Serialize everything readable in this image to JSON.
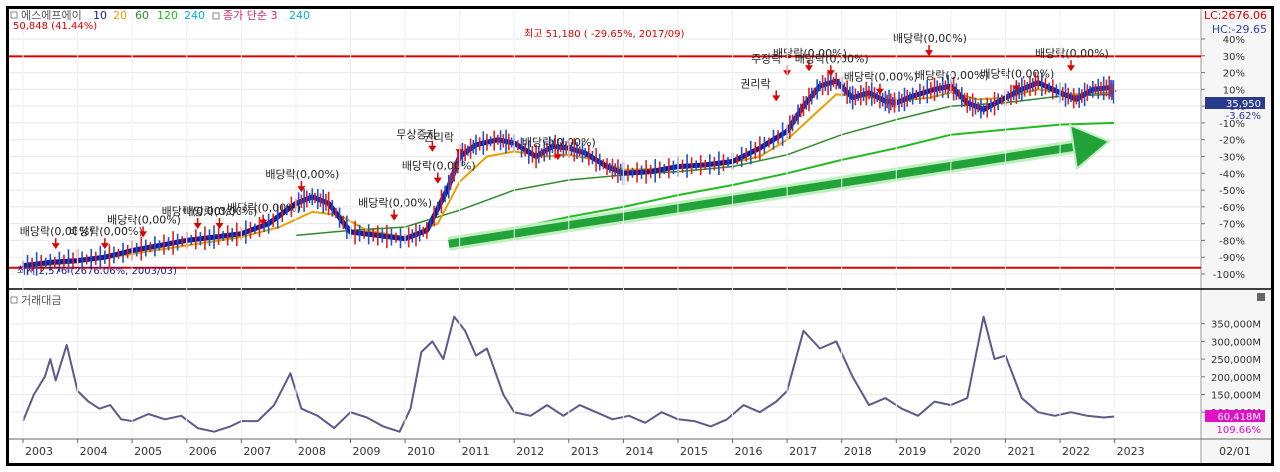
{
  "header": {
    "title": "에스에프에이",
    "ma_periods": [
      "10",
      "20",
      "60",
      "120",
      "240"
    ],
    "ma_colors": [
      "#1a1a8c",
      "#e6a000",
      "#2e8b2e",
      "#22bb22",
      "#00b5d0"
    ],
    "vol_label": "종가 단순 3",
    "vol_period": "240",
    "lc_label": "LC:2676.06",
    "hc_label": "HC:-29.65"
  },
  "annotations": {
    "high_value": "50,848 (41.44%)",
    "peak_label": "최고 51,180 ( -29.65%, 2017/09)",
    "low_label": "최저 2,576 (2676.06%, 2003/03)",
    "price_badge": "35,950",
    "price_pct": "-3.62%",
    "vol_badge": "60,418M",
    "vol_pct": "109.66%",
    "date_corner": "02/01",
    "volume_panel_title": "거래대금"
  },
  "event_labels": [
    "배당락(0,00%)",
    "배당락(0,00%)",
    "배당락(0,00%)",
    "배당락(0,00%)",
    "배당락(0,00%)",
    "배당락(0,00%)",
    "배당락(0,00%)",
    "배당락(0,00%)",
    "배당락(0,00%)",
    "배당락(0,00%)",
    "배당락(0,00%)",
    "배당락(0,00%)",
    "배당락(0,00%)",
    "배당락(0,00%)",
    "배당락(0,00%)",
    "배당락(0,00%)",
    "배당락(0,00%)",
    "권리락",
    "권리락",
    "무상증자",
    "주장락"
  ],
  "trend_arrow": {
    "color": "#22a33a",
    "start_year": 2010.8,
    "start_pct": -82,
    "end_year": 2022.9,
    "end_pct": -21
  },
  "chart_data": [
    {
      "type": "line",
      "x_axis_labels": [
        "2003",
        "2004",
        "2005",
        "2006",
        "2007",
        "2008",
        "2009",
        "2010",
        "2011",
        "2012",
        "2013",
        "2014",
        "2015",
        "2016",
        "2017",
        "2018",
        "2019",
        "2020",
        "2021",
        "2022",
        "2023"
      ],
      "y_axis_labels": [
        "40%",
        "30%",
        "20%",
        "10%",
        "0%",
        "-10%",
        "-20%",
        "-30%",
        "-40%",
        "-50%",
        "-60%",
        "-70%",
        "-80%",
        "-90%",
        "-100%"
      ],
      "ylim": [
        -100,
        40
      ],
      "reference_lines": [
        {
          "pct": 29.65,
          "color": "#dd0000"
        },
        {
          "pct": -96.3,
          "color": "#dd0000"
        }
      ],
      "series": [
        {
          "color": "#1a1a8c",
          "points": [
            [
              2003.0,
              -95
            ],
            [
              2003.5,
              -93
            ],
            [
              2004.0,
              -92
            ],
            [
              2004.5,
              -90
            ],
            [
              2005.0,
              -86
            ],
            [
              2005.5,
              -83
            ],
            [
              2006.0,
              -80
            ],
            [
              2006.5,
              -78
            ],
            [
              2007.0,
              -76
            ],
            [
              2007.5,
              -70
            ],
            [
              2008.0,
              -58
            ],
            [
              2008.3,
              -54
            ],
            [
              2008.6,
              -58
            ],
            [
              2009.0,
              -75
            ],
            [
              2009.5,
              -77
            ],
            [
              2010.0,
              -79
            ],
            [
              2010.4,
              -74
            ],
            [
              2010.8,
              -48
            ],
            [
              2011.0,
              -30
            ],
            [
              2011.3,
              -23
            ],
            [
              2011.7,
              -20
            ],
            [
              2012.0,
              -22
            ],
            [
              2012.4,
              -30
            ],
            [
              2012.7,
              -24
            ],
            [
              2013.0,
              -25
            ],
            [
              2013.3,
              -28
            ],
            [
              2013.7,
              -36
            ],
            [
              2014.0,
              -40
            ],
            [
              2014.5,
              -39
            ],
            [
              2015.0,
              -36
            ],
            [
              2015.5,
              -35
            ],
            [
              2016.0,
              -33
            ],
            [
              2016.5,
              -25
            ],
            [
              2017.0,
              -15
            ],
            [
              2017.3,
              0
            ],
            [
              2017.6,
              12
            ],
            [
              2017.9,
              15
            ],
            [
              2018.2,
              5
            ],
            [
              2018.5,
              8
            ],
            [
              2018.8,
              3
            ],
            [
              2019.0,
              2
            ],
            [
              2019.3,
              6
            ],
            [
              2019.7,
              10
            ],
            [
              2020.0,
              12
            ],
            [
              2020.3,
              2
            ],
            [
              2020.6,
              -2
            ],
            [
              2021.0,
              5
            ],
            [
              2021.3,
              10
            ],
            [
              2021.6,
              14
            ],
            [
              2022.0,
              8
            ],
            [
              2022.3,
              4
            ],
            [
              2022.6,
              10
            ],
            [
              2022.9,
              11
            ],
            [
              2023.0,
              8
            ]
          ]
        },
        {
          "color": "#e6a000",
          "points": [
            [
              2003.0,
              -96
            ],
            [
              2004.0,
              -93
            ],
            [
              2005.0,
              -88
            ],
            [
              2006.0,
              -83
            ],
            [
              2007.0,
              -78
            ],
            [
              2007.7,
              -72
            ],
            [
              2008.3,
              -63
            ],
            [
              2008.8,
              -65
            ],
            [
              2009.3,
              -74
            ],
            [
              2010.0,
              -78
            ],
            [
              2010.6,
              -70
            ],
            [
              2011.0,
              -45
            ],
            [
              2011.5,
              -30
            ],
            [
              2012.0,
              -27
            ],
            [
              2012.6,
              -30
            ],
            [
              2013.0,
              -29
            ],
            [
              2013.5,
              -32
            ],
            [
              2014.0,
              -38
            ],
            [
              2015.0,
              -37
            ],
            [
              2015.8,
              -35
            ],
            [
              2016.5,
              -30
            ],
            [
              2017.0,
              -20
            ],
            [
              2017.5,
              -5
            ],
            [
              2017.9,
              7
            ],
            [
              2018.4,
              6
            ],
            [
              2019.0,
              3
            ],
            [
              2019.6,
              5
            ],
            [
              2020.0,
              8
            ],
            [
              2020.5,
              4
            ],
            [
              2021.0,
              5
            ],
            [
              2021.6,
              10
            ],
            [
              2022.2,
              7
            ],
            [
              2023.0,
              8
            ]
          ]
        },
        {
          "color": "#2e8b2e",
          "points": [
            [
              2008.0,
              -77
            ],
            [
              2009.0,
              -74
            ],
            [
              2010.0,
              -72
            ],
            [
              2011.0,
              -62
            ],
            [
              2012.0,
              -50
            ],
            [
              2013.0,
              -44
            ],
            [
              2014.0,
              -41
            ],
            [
              2015.0,
              -39
            ],
            [
              2016.0,
              -36
            ],
            [
              2017.0,
              -29
            ],
            [
              2018.0,
              -17
            ],
            [
              2019.0,
              -8
            ],
            [
              2020.0,
              0
            ],
            [
              2021.0,
              2
            ],
            [
              2022.0,
              6
            ],
            [
              2023.0,
              7
            ]
          ]
        },
        {
          "color": "#22bb22",
          "points": [
            [
              2012.0,
              -73
            ],
            [
              2013.0,
              -66
            ],
            [
              2014.0,
              -60
            ],
            [
              2015.0,
              -53
            ],
            [
              2016.0,
              -47
            ],
            [
              2017.0,
              -40
            ],
            [
              2018.0,
              -32
            ],
            [
              2019.0,
              -25
            ],
            [
              2020.0,
              -17
            ],
            [
              2021.0,
              -14
            ],
            [
              2022.0,
              -11
            ],
            [
              2023.0,
              -10
            ]
          ]
        }
      ]
    },
    {
      "type": "line",
      "title": "거래대금",
      "y_axis_labels": [
        "350,000M",
        "300,000M",
        "250,000M",
        "200,000M",
        "150,000M",
        "100,000M"
      ],
      "ylim": [
        30000,
        400000
      ],
      "series": [
        {
          "color": "#5a5a8c",
          "points": [
            [
              2003.0,
              75000
            ],
            [
              2003.2,
              150000
            ],
            [
              2003.4,
              200000
            ],
            [
              2003.5,
              250000
            ],
            [
              2003.6,
              190000
            ],
            [
              2003.8,
              290000
            ],
            [
              2004.0,
              160000
            ],
            [
              2004.2,
              130000
            ],
            [
              2004.4,
              110000
            ],
            [
              2004.6,
              120000
            ],
            [
              2004.8,
              80000
            ],
            [
              2005.0,
              75000
            ],
            [
              2005.3,
              95000
            ],
            [
              2005.6,
              80000
            ],
            [
              2005.9,
              90000
            ],
            [
              2006.2,
              55000
            ],
            [
              2006.5,
              45000
            ],
            [
              2006.8,
              60000
            ],
            [
              2007.0,
              75000
            ],
            [
              2007.3,
              75000
            ],
            [
              2007.6,
              120000
            ],
            [
              2007.9,
              210000
            ],
            [
              2008.1,
              110000
            ],
            [
              2008.4,
              90000
            ],
            [
              2008.7,
              55000
            ],
            [
              2009.0,
              100000
            ],
            [
              2009.3,
              85000
            ],
            [
              2009.6,
              60000
            ],
            [
              2009.9,
              45000
            ],
            [
              2010.1,
              110000
            ],
            [
              2010.3,
              270000
            ],
            [
              2010.5,
              300000
            ],
            [
              2010.7,
              250000
            ],
            [
              2010.9,
              370000
            ],
            [
              2011.1,
              330000
            ],
            [
              2011.3,
              260000
            ],
            [
              2011.5,
              280000
            ],
            [
              2011.8,
              150000
            ],
            [
              2012.0,
              100000
            ],
            [
              2012.3,
              90000
            ],
            [
              2012.6,
              120000
            ],
            [
              2012.9,
              90000
            ],
            [
              2013.2,
              120000
            ],
            [
              2013.5,
              100000
            ],
            [
              2013.8,
              80000
            ],
            [
              2014.1,
              90000
            ],
            [
              2014.4,
              70000
            ],
            [
              2014.7,
              100000
            ],
            [
              2015.0,
              80000
            ],
            [
              2015.3,
              75000
            ],
            [
              2015.6,
              60000
            ],
            [
              2015.9,
              80000
            ],
            [
              2016.2,
              120000
            ],
            [
              2016.5,
              100000
            ],
            [
              2016.8,
              130000
            ],
            [
              2017.0,
              160000
            ],
            [
              2017.3,
              330000
            ],
            [
              2017.6,
              280000
            ],
            [
              2017.9,
              300000
            ],
            [
              2018.2,
              200000
            ],
            [
              2018.5,
              120000
            ],
            [
              2018.8,
              140000
            ],
            [
              2019.1,
              110000
            ],
            [
              2019.4,
              90000
            ],
            [
              2019.7,
              130000
            ],
            [
              2020.0,
              120000
            ],
            [
              2020.3,
              140000
            ],
            [
              2020.6,
              370000
            ],
            [
              2020.8,
              250000
            ],
            [
              2021.0,
              260000
            ],
            [
              2021.3,
              140000
            ],
            [
              2021.6,
              100000
            ],
            [
              2021.9,
              90000
            ],
            [
              2022.2,
              100000
            ],
            [
              2022.5,
              90000
            ],
            [
              2022.8,
              85000
            ],
            [
              2023.0,
              88000
            ]
          ]
        }
      ]
    }
  ]
}
